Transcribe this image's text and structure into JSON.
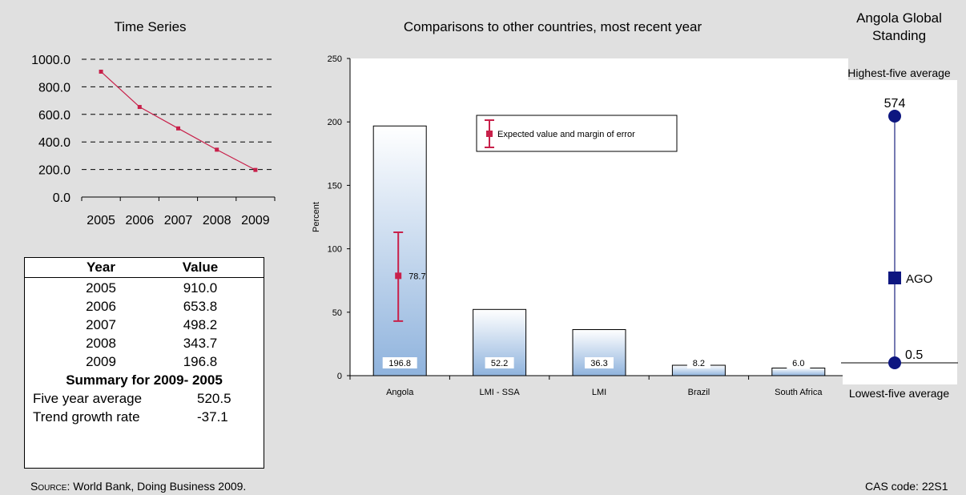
{
  "time_series": {
    "title": "Time Series",
    "y_ticks": [
      "1000.0",
      "800.0",
      "600.0",
      "400.0",
      "200.0",
      "0.0"
    ],
    "x_ticks": [
      "2005",
      "2006",
      "2007",
      "2008",
      "2009"
    ],
    "accent": "#c8204a"
  },
  "table": {
    "headers": [
      "Year",
      "Value"
    ],
    "rows": [
      {
        "year": "2005",
        "value": "910.0"
      },
      {
        "year": "2006",
        "value": "653.8"
      },
      {
        "year": "2007",
        "value": "498.2"
      },
      {
        "year": "2008",
        "value": "343.7"
      },
      {
        "year": "2009",
        "value": "196.8"
      }
    ],
    "summary_title": "Summary for 2009- 2005",
    "five_year_label": "Five year average",
    "five_year_value": "520.5",
    "trend_label": "Trend growth rate",
    "trend_value": "-37.1"
  },
  "comparison": {
    "title": "Comparisons to other countries, most recent year",
    "ylabel": "Percent",
    "y_ticks": [
      "250",
      "200",
      "150",
      "100",
      "50",
      "0"
    ],
    "legend_label": "Expected value and margin of error",
    "expected_label": "78.7",
    "bar_labels": [
      "196.8",
      "52.2",
      "36.3",
      "8.2",
      "6.0"
    ]
  },
  "standing": {
    "title_line1": "Angola Global",
    "title_line2": "Standing",
    "top_label": "Highest-five average",
    "bottom_label": "Lowest-five average",
    "high_value": "574",
    "low_value": "0.5",
    "country_code": "AGO"
  },
  "footer": {
    "source_prefix": "Source",
    "source_text": ": World Bank, Doing Business 2009.",
    "cas_code": "CAS code: 22S1"
  },
  "chart_data": [
    {
      "type": "line",
      "title": "Time Series",
      "x": [
        "2005",
        "2006",
        "2007",
        "2008",
        "2009"
      ],
      "series": [
        {
          "values": [
            910.0,
            653.8,
            498.2,
            343.7,
            196.8
          ]
        }
      ],
      "ylim": [
        0,
        1000
      ],
      "grid": true
    },
    {
      "type": "bar",
      "title": "Comparisons to other countries, most recent year",
      "ylabel": "Percent",
      "categories": [
        "Angola",
        "LMI - SSA",
        "LMI",
        "Brazil",
        "South Africa"
      ],
      "values": [
        196.8,
        52.2,
        36.3,
        8.2,
        6.0
      ],
      "ylim": [
        0,
        250
      ],
      "expected_value": {
        "category": "Angola",
        "value": 78.7,
        "low": 43,
        "high": 113
      },
      "legend": "top-center"
    },
    {
      "type": "scatter",
      "title": "Angola Global Standing",
      "points": [
        {
          "label": "Highest-five average",
          "value": 574
        },
        {
          "label": "AGO",
          "value": null
        },
        {
          "label": "Lowest-five average",
          "value": 0.5
        }
      ]
    }
  ]
}
